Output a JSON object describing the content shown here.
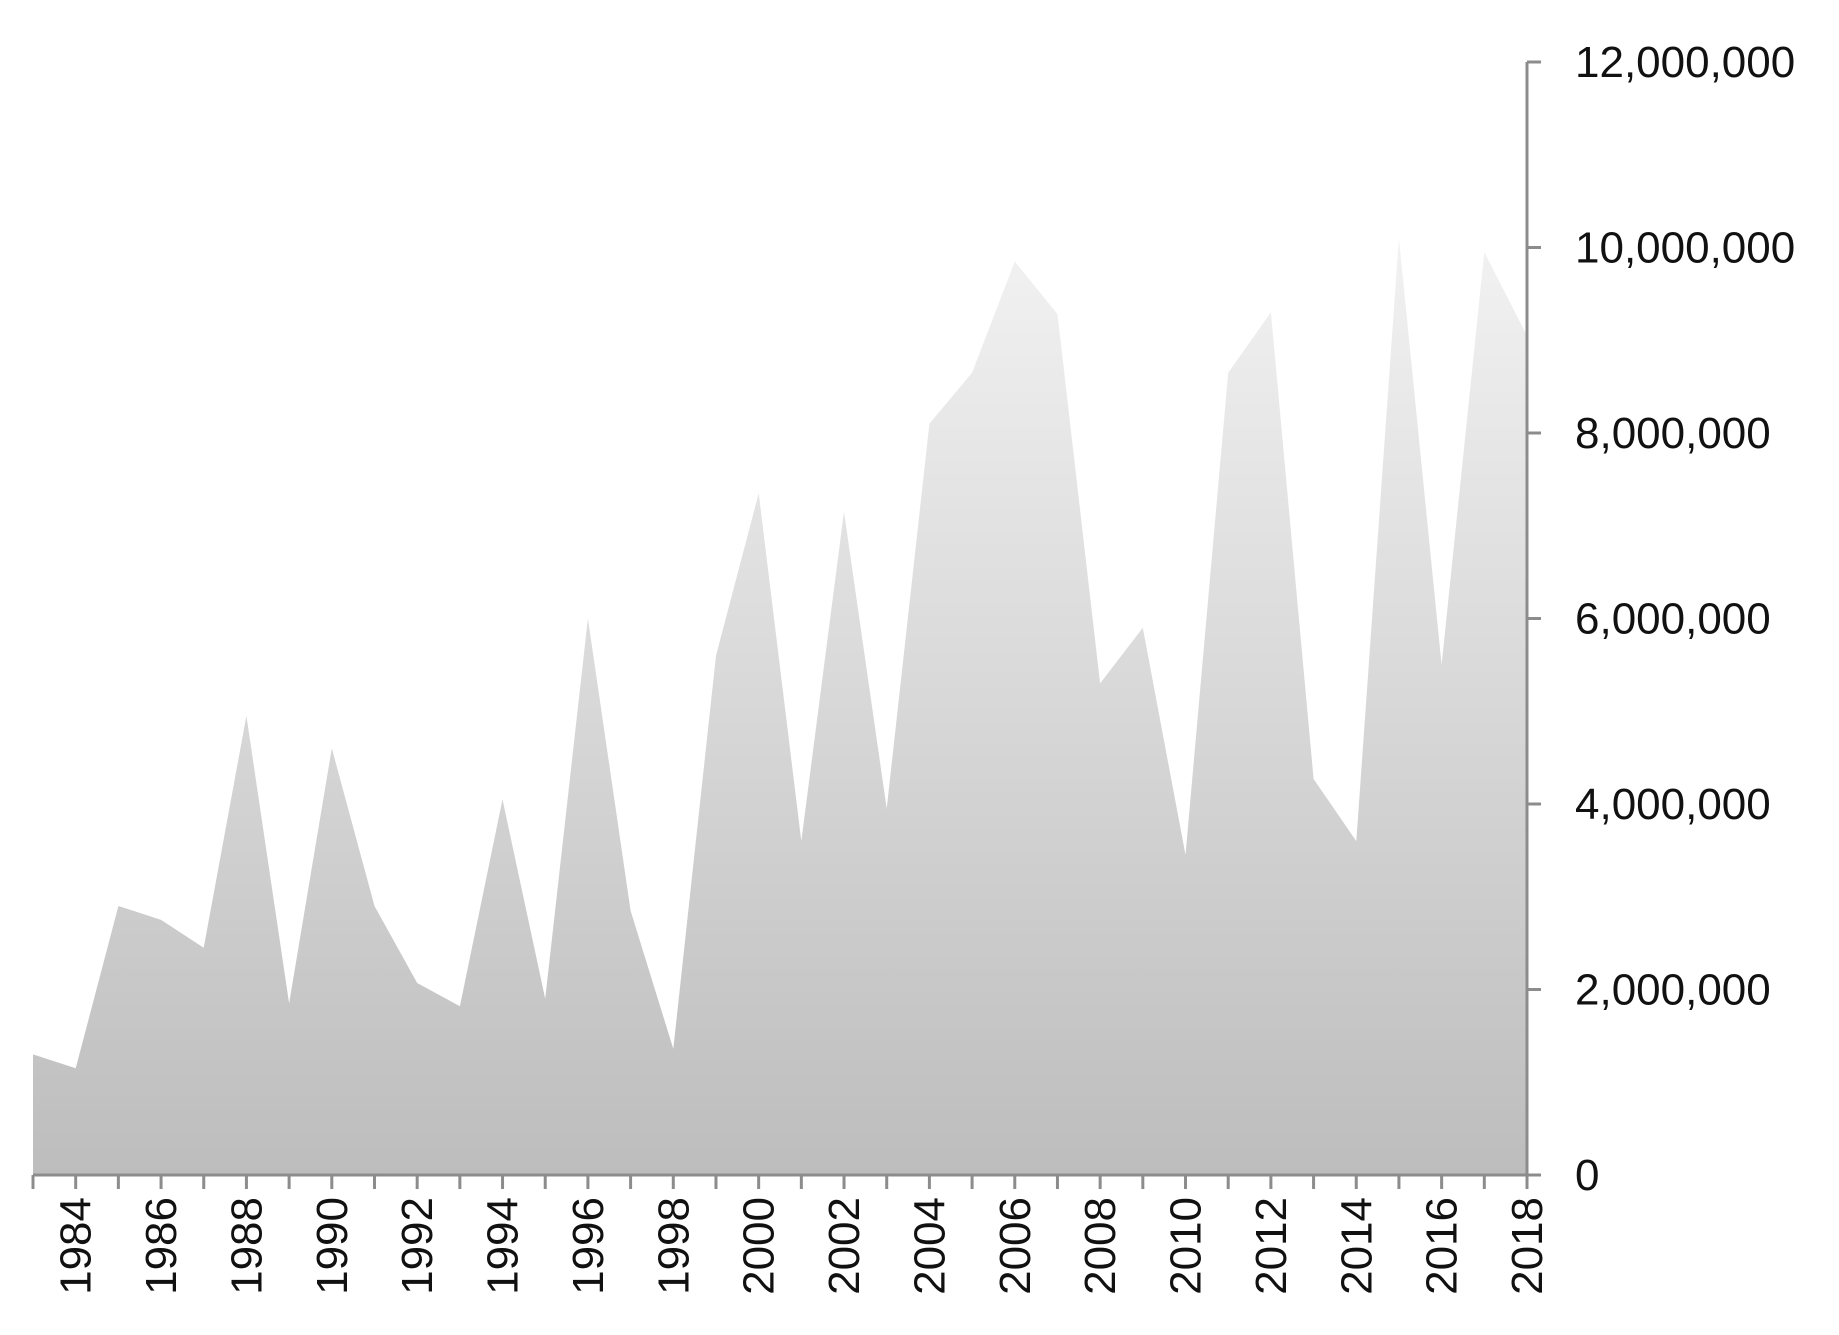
{
  "chart_data": {
    "type": "area",
    "title": "",
    "xlabel": "",
    "ylabel": "",
    "x": [
      1983,
      1984,
      1985,
      1986,
      1987,
      1988,
      1989,
      1990,
      1991,
      1992,
      1993,
      1994,
      1995,
      1996,
      1997,
      1998,
      1999,
      2000,
      2001,
      2002,
      2003,
      2004,
      2005,
      2006,
      2007,
      2008,
      2009,
      2010,
      2011,
      2012,
      2013,
      2014,
      2015,
      2016,
      2017,
      2018
    ],
    "series": [
      {
        "values": [
          1300000,
          1150000,
          2900000,
          2750000,
          2450000,
          4950000,
          1850000,
          4600000,
          2900000,
          2070000,
          1820000,
          4050000,
          1900000,
          6000000,
          2850000,
          1360000,
          5600000,
          7350000,
          3600000,
          7150000,
          3950000,
          8100000,
          8650000,
          9850000,
          9280000,
          5300000,
          5900000,
          3450000,
          8650000,
          9300000,
          4270000,
          3600000,
          10100000,
          5500000,
          9950000,
          9050000
        ]
      }
    ],
    "x_tick_labels": [
      "1984",
      "1986",
      "1988",
      "1990",
      "1992",
      "1994",
      "1996",
      "1998",
      "2000",
      "2002",
      "2004",
      "2006",
      "2008",
      "2010",
      "2012",
      "2014",
      "2016",
      "2018"
    ],
    "y_tick_labels": [
      "0",
      "2,000,000",
      "4,000,000",
      "6,000,000",
      "8,000,000",
      "10,000,000",
      "12,000,000"
    ],
    "ylim": [
      0,
      12000000
    ],
    "xlim": [
      1983,
      2018
    ],
    "y_axis_position": "right",
    "grid": false,
    "legend": "none",
    "colors": {
      "fill_top": "#f2f2f2",
      "fill_bottom": "#bdbdbd",
      "axis": "#8c8c8c"
    }
  }
}
